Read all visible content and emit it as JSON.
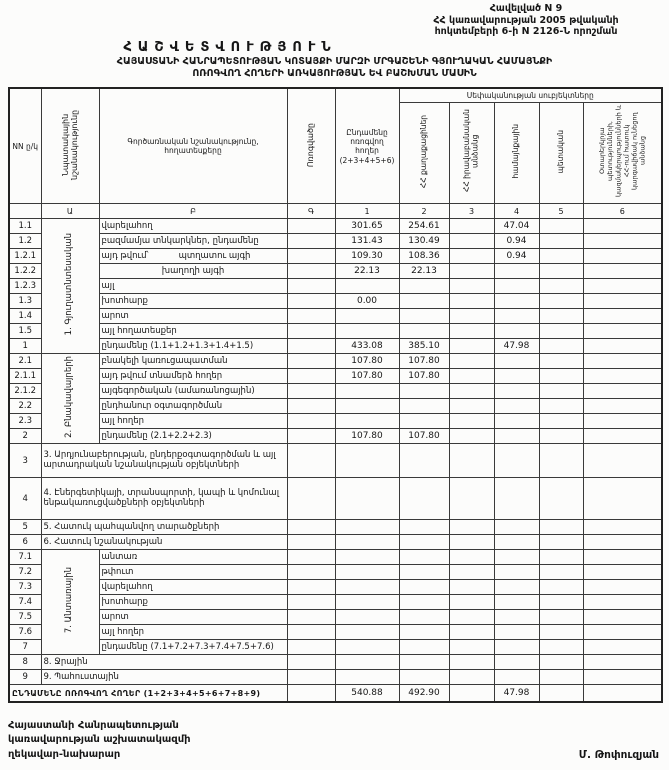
{
  "page": {
    "annex": {
      "line1": "Հավելված N 9",
      "line2": "ՀՀ կառավարության 2005 թվականի",
      "line3": "հոկտեմբերի 6-ի N 2126-Ն որոշման"
    },
    "title": "ՀԱՇՎԵՏՎՈՒԹՅՈՒՆ",
    "subtitle1": "ՀԱՅԱՍՏԱՆԻ ՀԱՆՐԱՊԵՏՈՒԹՅԱՆ ԿՈՏԱՅՔԻ ՄԱՐԶԻ ՄՐԳԱՇԵՆԻ ԳՅՈՒՂԱԿԱՆ ՀԱՄԱՅՆՔԻ",
    "subtitle2": "ՈՌՈԳՎՈՂ ՀՈՂԵՐԻ ԱՌԿԱՅՈՒԹՅԱՆ ԵՎ ԲԱՇԽՄԱՆ ՄԱՍԻՆ"
  },
  "table": {
    "headers": {
      "num": "NN ը/կ",
      "purpose": "Նպատակային նշանակությունը",
      "functional": "Գործառնական նշանակությունը, հողատեսքերը",
      "irrigated": "Ոռոգվածը",
      "total": "Ընդամենը ոռոգվող հողեր (2+3+4+5+6)",
      "ownership": "Սեփականության սուբյեկտները",
      "citizens": "ՀՀ քաղաքացիներ",
      "legal": "ՀՀ իրավաբանական անձանց",
      "community": "համայնքային",
      "state": "պետական",
      "foreign": "Օտարերկրյա պետությունների, կազմակերպությունների և ՀՀ-ում հատուկ կարգավիճակ ունեցող անձանց"
    },
    "letters": [
      "",
      "Ա",
      "Բ",
      "Գ",
      "1",
      "2",
      "3",
      "4",
      "5",
      "6"
    ],
    "rows": [
      {
        "num": "1.1",
        "desc": "վարելահող",
        "v": [
          "301.65",
          "254.61",
          "",
          "47.04",
          "",
          ""
        ],
        "group": {
          "label": "1. Գյուղատնտեսական",
          "span": 9
        }
      },
      {
        "num": "1.2",
        "desc": "բազմամյա տնկարկներ, ընդամենը",
        "v": [
          "131.43",
          "130.49",
          "",
          "0.94",
          "",
          ""
        ]
      },
      {
        "num": "1.2.1",
        "desc": "այդ թվում՝",
        "desc2": "պտղատու այգի",
        "v": [
          "109.30",
          "108.36",
          "",
          "0.94",
          "",
          ""
        ]
      },
      {
        "num": "1.2.2",
        "desc": "խաղողի այգի",
        "center": true,
        "v": [
          "22.13",
          "22.13",
          "",
          "",
          "",
          ""
        ]
      },
      {
        "num": "1.2.3",
        "desc": "այլ"
      },
      {
        "num": "1.3",
        "desc": "խոտհարք",
        "v": [
          "0.00",
          "",
          "",
          "",
          "",
          ""
        ]
      },
      {
        "num": "1.4",
        "desc": "արոտ"
      },
      {
        "num": "1.5",
        "desc": "այլ հողատեսքեր"
      },
      {
        "num": "1",
        "desc": "ընդամենը (1.1+1.2+1.3+1.4+1.5)",
        "v": [
          "433.08",
          "385.10",
          "",
          "47.98",
          "",
          ""
        ]
      },
      {
        "num": "2.1",
        "desc": "բնակելի կառուցապատման",
        "v": [
          "107.80",
          "107.80",
          "",
          "",
          "",
          ""
        ],
        "group": {
          "label": "2. Բնակավայրերի",
          "span": 6
        }
      },
      {
        "num": "2.1.1",
        "desc": "այդ թվում տնամերձ հողեր",
        "v": [
          "107.80",
          "107.80",
          "",
          "",
          "",
          ""
        ]
      },
      {
        "num": "2.1.2",
        "desc": "այգեգործական (ամառանոցային)"
      },
      {
        "num": "2.2",
        "desc": "ընդհանուր օգտագործման"
      },
      {
        "num": "2.3",
        "desc": "այլ հողեր"
      },
      {
        "num": "2",
        "desc": "ընդամենը (2.1+2.2+2.3)",
        "v": [
          "107.80",
          "107.80",
          "",
          "",
          "",
          ""
        ]
      },
      {
        "num": "3",
        "wide": true,
        "desc": "3. Արդյունաբերության, ընդերքօգտագործման և այլ արտադրական նշանակության օբյեկտների"
      },
      {
        "num": "4",
        "wide": true,
        "desc": "4. Էներգետիկայի, տրանսպորտի, կապի և կոմունալ ենթակառուցվածքների օբյեկտների"
      },
      {
        "num": "5",
        "wide": true,
        "desc": "5. Հատուկ պահպանվող տարածքների"
      },
      {
        "num": "6",
        "wide": true,
        "desc": "6. Հատուկ նշանակության"
      },
      {
        "num": "7.1",
        "desc": "անտառ",
        "group": {
          "label": "7. Անտառային",
          "span": 7
        }
      },
      {
        "num": "7.2",
        "desc": "թփուտ"
      },
      {
        "num": "7.3",
        "desc": "վարելահող"
      },
      {
        "num": "7.4",
        "desc": "խոտհարք"
      },
      {
        "num": "7.5",
        "desc": "արոտ"
      },
      {
        "num": "7.6",
        "desc": "այլ հողեր"
      },
      {
        "num": "7",
        "desc": "ընդամենը (7.1+7.2+7.3+7.4+7.5+7.6)"
      },
      {
        "num": "8",
        "wide": true,
        "desc": "8. Ջրային"
      },
      {
        "num": "9",
        "wide": true,
        "desc": "9. Պահուստային"
      },
      {
        "num": "",
        "total": true,
        "desc": "ԸՆԴԱՄԵՆԸ ՈՌՈԳՎՈՂ ՀՈՂԵՐ (1+2+3+4+5+6+7+8+9)",
        "v": [
          "540.88",
          "492.90",
          "",
          "47.98",
          "",
          ""
        ]
      }
    ]
  },
  "footer": {
    "org_line1": "Հայաստանի Հանրապետության",
    "org_line2": "կառավարության աշխատակազմի",
    "org_line3": "ղեկավար-նախարար",
    "signer": "Մ. Թոփուզյան"
  }
}
